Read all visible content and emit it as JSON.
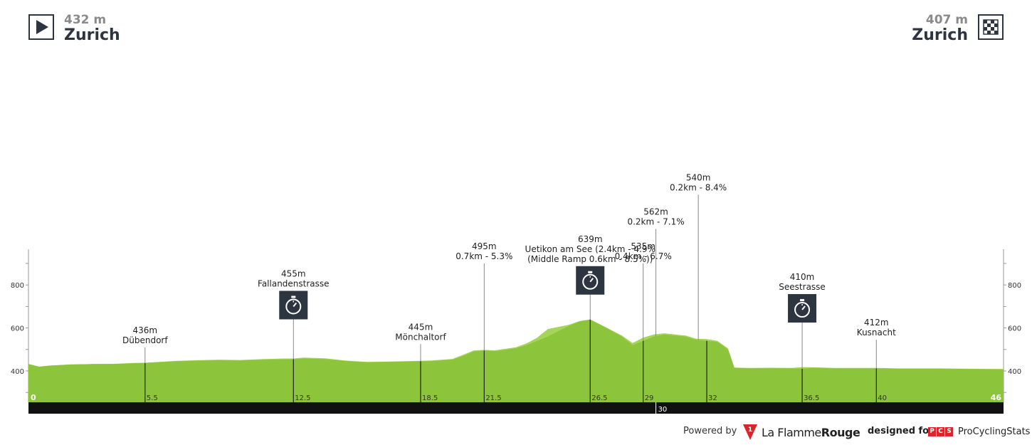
{
  "start": {
    "altitude": "432 m",
    "city": "Zurich"
  },
  "finish": {
    "altitude": "407 m",
    "city": "Zurich"
  },
  "colors": {
    "profile_dark": "#8cc43c",
    "profile_light": "#a6d45a",
    "axis_bar": "#111111",
    "icon_bg": "#2c3540",
    "accent_red": "#d9262c"
  },
  "chart_data": {
    "type": "area",
    "title": "",
    "xlabel": "",
    "ylabel": "",
    "xlim": [
      0,
      46
    ],
    "ylim": [
      250,
      1000
    ],
    "y_ticks": [
      400,
      600,
      800
    ],
    "grid": false,
    "x": [
      0,
      0.5,
      1,
      2,
      3,
      4,
      5,
      5.5,
      6,
      7,
      8,
      9,
      10,
      11,
      12,
      12.5,
      13,
      14,
      15,
      16,
      17,
      18,
      18.5,
      19,
      20,
      20.5,
      21,
      21.5,
      22,
      23,
      23.5,
      24,
      24.5,
      25,
      25.5,
      26,
      26.5,
      27,
      28,
      28.5,
      29,
      29.5,
      30,
      30.5,
      31,
      31.5,
      32,
      32.5,
      33,
      33.3,
      34,
      35,
      36,
      36.5,
      37,
      38,
      39,
      40,
      41,
      42,
      43,
      44,
      45,
      46
    ],
    "y": [
      432,
      420,
      425,
      430,
      432,
      432,
      436,
      437,
      440,
      445,
      448,
      450,
      449,
      452,
      454,
      455,
      458,
      455,
      446,
      440,
      442,
      444,
      445,
      446,
      452,
      470,
      490,
      495,
      492,
      505,
      520,
      540,
      560,
      585,
      610,
      630,
      639,
      615,
      560,
      520,
      540,
      560,
      570,
      565,
      560,
      545,
      540,
      535,
      500,
      415,
      412,
      413,
      412,
      410,
      415,
      412,
      412,
      412,
      410,
      410,
      410,
      409,
      408,
      407
    ],
    "y_light": [
      432,
      420,
      425,
      430,
      432,
      433,
      437,
      438,
      441,
      447,
      450,
      452,
      451,
      455,
      458,
      458,
      462,
      459,
      448,
      442,
      444,
      446,
      447,
      449,
      456,
      475,
      495,
      498,
      496,
      510,
      528,
      555,
      595,
      605,
      615,
      632,
      639,
      615,
      565,
      530,
      555,
      570,
      575,
      570,
      565,
      550,
      548,
      540,
      505,
      416,
      414,
      415,
      414,
      418,
      417,
      414,
      414,
      414,
      412,
      412,
      412,
      411,
      410,
      409
    ],
    "x_markers": [
      {
        "km": 0,
        "label": "0"
      },
      {
        "km": 5.5,
        "label": "5.5"
      },
      {
        "km": 12.5,
        "label": "12.5"
      },
      {
        "km": 18.5,
        "label": "18.5"
      },
      {
        "km": 21.5,
        "label": "21.5"
      },
      {
        "km": 26.5,
        "label": "26.5"
      },
      {
        "km": 29,
        "label": "29"
      },
      {
        "km": 32,
        "label": "32"
      },
      {
        "km": 36.5,
        "label": "36.5"
      },
      {
        "km": 40,
        "label": "40"
      },
      {
        "km": 46,
        "label": "46"
      }
    ],
    "axis_marker": {
      "km": 29.6,
      "label": "30"
    },
    "annotations": [
      {
        "km": 5.5,
        "elev": 437,
        "label_y": 510,
        "lines": [
          "436m",
          "Dübendorf"
        ],
        "icon": ""
      },
      {
        "km": 12.5,
        "elev": 455,
        "label_y": 640,
        "lines": [
          "455m",
          "Fallandenstrasse"
        ],
        "icon": "stopwatch"
      },
      {
        "km": 18.5,
        "elev": 445,
        "label_y": 525,
        "lines": [
          "445m",
          "Mönchaltorf"
        ],
        "icon": ""
      },
      {
        "km": 21.5,
        "elev": 495,
        "label_y": 900,
        "lines": [
          "495m",
          "0.7km - 5.3%"
        ],
        "icon": ""
      },
      {
        "km": 26.5,
        "elev": 639,
        "label_y": 755,
        "lines": [
          "639m",
          "Uetikon am See (2.4km - 4.9%",
          "(Middle Ramp 0.6km - 8.5%))"
        ],
        "icon": "stopwatch"
      },
      {
        "km": 29,
        "elev": 535,
        "label_y": 900,
        "lines": [
          "535m",
          "0.4km - 6.7%"
        ],
        "icon": ""
      },
      {
        "km": 29.6,
        "elev": 570,
        "label_y": 1060,
        "lines": [
          "562m",
          "0.2km - 7.1%"
        ],
        "icon": ""
      },
      {
        "km": 31.6,
        "elev": 540,
        "label_y": 1220,
        "lines": [
          "540m",
          "0.2km - 8.4%"
        ],
        "icon": ""
      },
      {
        "km": 36.5,
        "elev": 412,
        "label_y": 625,
        "lines": [
          "410m",
          "Seestrasse"
        ],
        "icon": "stopwatch"
      },
      {
        "km": 40,
        "elev": 412,
        "label_y": 545,
        "lines": [
          "412m",
          "Kusnacht"
        ],
        "icon": ""
      }
    ]
  },
  "footer": {
    "powered_by": "Powered by",
    "lfr_number": "1",
    "lfr_brand_a": "La Flamme",
    "lfr_brand_b": "Rouge",
    "designed_for": "designed for",
    "pcs_letters": [
      "P",
      "C",
      "S"
    ],
    "pcs_name": "ProCyclingStats"
  }
}
